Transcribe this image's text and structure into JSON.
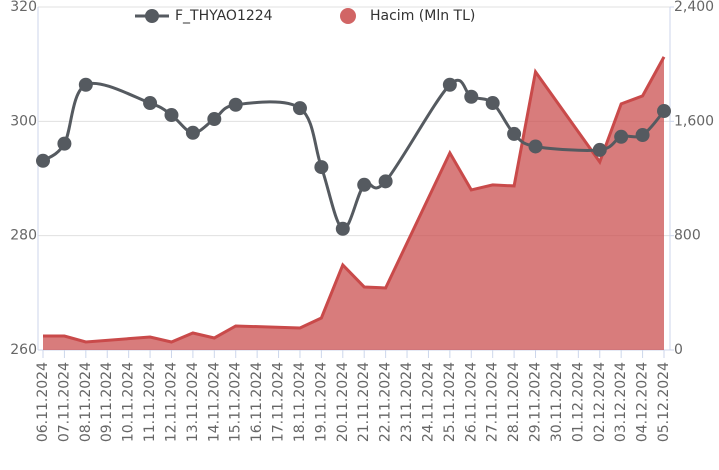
{
  "chart_data": {
    "type": "line",
    "x": [
      "06.11.2024",
      "07.11.2024",
      "08.11.2024",
      "11.11.2024",
      "12.11.2024",
      "13.11.2024",
      "14.11.2024",
      "15.11.2024",
      "18.11.2024",
      "19.11.2024",
      "20.11.2024",
      "21.11.2024",
      "22.11.2024",
      "25.11.2024",
      "26.11.2024",
      "27.11.2024",
      "28.11.2024",
      "29.11.2024",
      "02.12.2024",
      "03.12.2024",
      "04.12.2024",
      "05.12.2024"
    ],
    "xlim": [
      "06.11.2024",
      "05.12.2024"
    ],
    "xticks": [
      "06.11.2024",
      "07.11.2024",
      "08.11.2024",
      "09.11.2024",
      "10.11.2024",
      "11.11.2024",
      "12.11.2024",
      "13.11.2024",
      "14.11.2024",
      "15.11.2024",
      "16.11.2024",
      "17.11.2024",
      "18.11.2024",
      "19.11.2024",
      "20.11.2024",
      "21.11.2024",
      "22.11.2024",
      "23.11.2024",
      "24.11.2024",
      "25.11.2024",
      "26.11.2024",
      "27.11.2024",
      "28.11.2024",
      "29.11.2024",
      "30.11.2024",
      "01.12.2024",
      "02.12.2024",
      "03.12.2024",
      "04.12.2024",
      "05.12.2024"
    ],
    "series": [
      {
        "name": "F_THYAO1224",
        "type": "line",
        "color": "#555a60",
        "values": [
          293.1,
          296.1,
          306.4,
          303.2,
          301.1,
          298.0,
          300.4,
          302.9,
          302.3,
          292.0,
          281.2,
          288.9,
          289.5,
          306.4,
          304.3,
          303.2,
          297.8,
          295.6,
          295.0,
          297.3,
          297.6,
          301.8
        ]
      },
      {
        "name": "Hacim (Mln TL)",
        "type": "area",
        "axis": "y2",
        "color": "#c94a4a",
        "values": [
          98,
          98,
          56,
          91,
          56,
          119,
          84,
          168,
          154,
          224,
          595,
          441,
          434,
          1379,
          1120,
          1155,
          1148,
          1946,
          1316,
          1722,
          1778,
          2051
        ]
      }
    ],
    "ylim": [
      260,
      320
    ],
    "yticks": [
      260,
      280,
      300,
      320
    ],
    "y2lim": [
      0,
      2400
    ],
    "y2ticks": [
      0,
      {
        "value": 800,
        "label": "800"
      },
      {
        "value": 1600,
        "label": "1,600"
      },
      {
        "value": 2400,
        "label": "2,400"
      }
    ],
    "grid": true,
    "legend": "top"
  }
}
